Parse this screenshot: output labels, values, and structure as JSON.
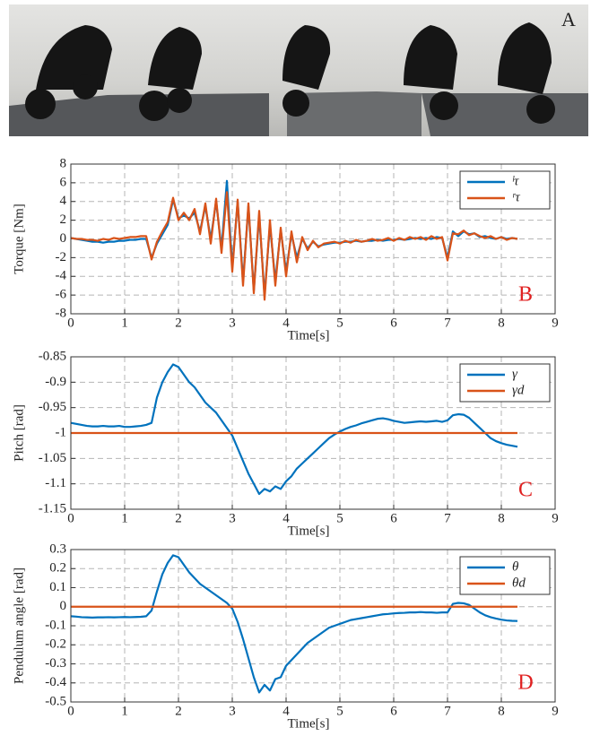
{
  "photo": {
    "label": "A"
  },
  "chart_data": [
    {
      "type": "line",
      "panel_label": "B",
      "ylabel": "Torque [Nm]",
      "xlabel": "Time[s]",
      "xlim": [
        0,
        9
      ],
      "xticks": [
        0,
        1,
        2,
        3,
        4,
        5,
        6,
        7,
        8,
        9
      ],
      "ylim": [
        -8,
        8
      ],
      "yticks": [
        -8,
        -6,
        -4,
        -2,
        0,
        2,
        4,
        6,
        8
      ],
      "grid": true,
      "legend": "upper right",
      "x": [
        0,
        0.1,
        0.2,
        0.3,
        0.4,
        0.5,
        0.6,
        0.7,
        0.8,
        0.9,
        1,
        1.1,
        1.2,
        1.3,
        1.4,
        1.5,
        1.6,
        1.7,
        1.8,
        1.9,
        2,
        2.1,
        2.2,
        2.3,
        2.4,
        2.5,
        2.6,
        2.7,
        2.8,
        2.9,
        3,
        3.1,
        3.2,
        3.3,
        3.4,
        3.5,
        3.6,
        3.7,
        3.8,
        3.9,
        4,
        4.1,
        4.2,
        4.3,
        4.4,
        4.5,
        4.6,
        4.7,
        4.8,
        4.9,
        5,
        5.1,
        5.2,
        5.3,
        5.4,
        5.5,
        5.6,
        5.7,
        5.8,
        5.9,
        6,
        6.1,
        6.2,
        6.3,
        6.4,
        6.5,
        6.6,
        6.7,
        6.8,
        6.9,
        7,
        7.1,
        7.2,
        7.3,
        7.4,
        7.5,
        7.6,
        7.7,
        7.8,
        7.9,
        8,
        8.1,
        8.2,
        8.3
      ],
      "series": [
        {
          "name": "ˡτ",
          "color": "#0072bd",
          "values": [
            0.1,
            0,
            -0.1,
            -0.2,
            -0.3,
            -0.3,
            -0.4,
            -0.3,
            -0.3,
            -0.2,
            -0.2,
            -0.1,
            -0.1,
            0,
            0,
            -2,
            -0.5,
            0.5,
            1.5,
            4.2,
            2.2,
            2.5,
            2.2,
            2.8,
            0.8,
            3.5,
            0,
            4,
            -1,
            6.2,
            -3,
            4,
            -4.5,
            3.5,
            -5.5,
            2.5,
            -6,
            1.5,
            -4.5,
            1,
            -3.5,
            0.5,
            -2,
            0,
            -1,
            -0.3,
            -0.8,
            -0.6,
            -0.5,
            -0.4,
            -0.4,
            -0.3,
            -0.3,
            -0.2,
            -0.3,
            -0.2,
            -0.2,
            -0.1,
            -0.2,
            -0.1,
            -0.1,
            0,
            -0.1,
            0,
            0.1,
            0,
            0.1,
            0,
            0.2,
            0.1,
            -2,
            0.8,
            0.3,
            0.8,
            0.5,
            0.6,
            0.2,
            0.3,
            0.1,
            0,
            0.2,
            0,
            0.1,
            0
          ]
        },
        {
          "name": "ʳτ",
          "color": "#d95319",
          "values": [
            0.1,
            0,
            0,
            -0.1,
            -0.1,
            -0.2,
            0,
            -0.1,
            0.1,
            0,
            0.1,
            0.2,
            0.2,
            0.3,
            0.3,
            -2.2,
            -0.3,
            0.8,
            1.8,
            4.4,
            2,
            2.8,
            2,
            3.2,
            0.5,
            3.8,
            -0.5,
            4.3,
            -1.5,
            5,
            -3.5,
            4.2,
            -5,
            3.8,
            -5.8,
            3,
            -6.5,
            2,
            -5,
            1.2,
            -4,
            0.8,
            -2.5,
            0.2,
            -1.2,
            -0.2,
            -0.9,
            -0.5,
            -0.4,
            -0.3,
            -0.5,
            -0.2,
            -0.4,
            -0.1,
            -0.3,
            -0.2,
            0,
            -0.2,
            -0.1,
            0.1,
            -0.2,
            0.1,
            -0.1,
            0.2,
            0,
            0.2,
            -0.1,
            0.3,
            0,
            0.2,
            -2.3,
            0.6,
            0.5,
            0.9,
            0.4,
            0.6,
            0.3,
            0.1,
            0.3,
            0,
            0.2,
            -0.1,
            0.1,
            0
          ]
        }
      ]
    },
    {
      "type": "line",
      "panel_label": "C",
      "ylabel": "Pitch [rad]",
      "xlabel": "Time[s]",
      "xlim": [
        0,
        9
      ],
      "xticks": [
        0,
        1,
        2,
        3,
        4,
        5,
        6,
        7,
        8,
        9
      ],
      "ylim": [
        -1.15,
        -0.85
      ],
      "yticks": [
        -1.15,
        -1.1,
        -1.05,
        -1,
        -0.95,
        -0.9,
        -0.85
      ],
      "grid": true,
      "legend": "upper right",
      "x": [
        0,
        0.1,
        0.2,
        0.3,
        0.4,
        0.5,
        0.6,
        0.7,
        0.8,
        0.9,
        1,
        1.1,
        1.2,
        1.3,
        1.4,
        1.5,
        1.6,
        1.7,
        1.8,
        1.9,
        2,
        2.1,
        2.2,
        2.3,
        2.4,
        2.5,
        2.6,
        2.7,
        2.8,
        2.9,
        3,
        3.1,
        3.2,
        3.3,
        3.4,
        3.5,
        3.6,
        3.7,
        3.8,
        3.9,
        4,
        4.1,
        4.2,
        4.3,
        4.4,
        4.5,
        4.6,
        4.7,
        4.8,
        4.9,
        5,
        5.1,
        5.2,
        5.3,
        5.4,
        5.5,
        5.6,
        5.7,
        5.8,
        5.9,
        6,
        6.1,
        6.2,
        6.3,
        6.4,
        6.5,
        6.6,
        6.7,
        6.8,
        6.9,
        7,
        7.1,
        7.2,
        7.3,
        7.4,
        7.5,
        7.6,
        7.7,
        7.8,
        7.9,
        8,
        8.1,
        8.2,
        8.3
      ],
      "series": [
        {
          "name": "γ",
          "color": "#0072bd",
          "values": [
            -0.98,
            -0.982,
            -0.984,
            -0.986,
            -0.987,
            -0.987,
            -0.986,
            -0.987,
            -0.987,
            -0.986,
            -0.988,
            -0.988,
            -0.987,
            -0.986,
            -0.984,
            -0.98,
            -0.93,
            -0.9,
            -0.88,
            -0.865,
            -0.87,
            -0.885,
            -0.9,
            -0.91,
            -0.925,
            -0.94,
            -0.95,
            -0.96,
            -0.975,
            -0.99,
            -1.005,
            -1.03,
            -1.055,
            -1.08,
            -1.1,
            -1.12,
            -1.11,
            -1.115,
            -1.105,
            -1.11,
            -1.095,
            -1.085,
            -1.07,
            -1.06,
            -1.05,
            -1.04,
            -1.03,
            -1.02,
            -1.01,
            -1.003,
            -0.997,
            -0.992,
            -0.988,
            -0.985,
            -0.981,
            -0.978,
            -0.975,
            -0.972,
            -0.971,
            -0.973,
            -0.976,
            -0.978,
            -0.98,
            -0.979,
            -0.978,
            -0.977,
            -0.978,
            -0.977,
            -0.976,
            -0.978,
            -0.975,
            -0.965,
            -0.963,
            -0.964,
            -0.97,
            -0.98,
            -0.99,
            -1,
            -1.01,
            -1.016,
            -1.02,
            -1.023,
            -1.025,
            -1.027
          ]
        },
        {
          "name": "γd",
          "color": "#d95319",
          "x": [
            0,
            8.3
          ],
          "values": [
            -1,
            -1
          ]
        }
      ]
    },
    {
      "type": "line",
      "panel_label": "D",
      "ylabel": "Pendulum angle [rad]",
      "xlabel": "Time[s]",
      "xlim": [
        0,
        9
      ],
      "xticks": [
        0,
        1,
        2,
        3,
        4,
        5,
        6,
        7,
        8,
        9
      ],
      "ylim": [
        -0.5,
        0.3
      ],
      "yticks": [
        -0.5,
        -0.4,
        -0.3,
        -0.2,
        -0.1,
        0,
        0.1,
        0.2,
        0.3
      ],
      "grid": true,
      "legend": "upper right",
      "x": [
        0,
        0.1,
        0.2,
        0.3,
        0.4,
        0.5,
        0.6,
        0.7,
        0.8,
        0.9,
        1,
        1.1,
        1.2,
        1.3,
        1.4,
        1.5,
        1.6,
        1.7,
        1.8,
        1.9,
        2,
        2.1,
        2.2,
        2.3,
        2.4,
        2.5,
        2.6,
        2.7,
        2.8,
        2.9,
        3,
        3.1,
        3.2,
        3.3,
        3.4,
        3.5,
        3.6,
        3.7,
        3.8,
        3.9,
        4,
        4.1,
        4.2,
        4.3,
        4.4,
        4.5,
        4.6,
        4.7,
        4.8,
        4.9,
        5,
        5.1,
        5.2,
        5.3,
        5.4,
        5.5,
        5.6,
        5.7,
        5.8,
        5.9,
        6,
        6.1,
        6.2,
        6.3,
        6.4,
        6.5,
        6.6,
        6.7,
        6.8,
        6.9,
        7,
        7.1,
        7.2,
        7.3,
        7.4,
        7.5,
        7.6,
        7.7,
        7.8,
        7.9,
        8,
        8.1,
        8.2,
        8.3
      ],
      "series": [
        {
          "name": "θ",
          "color": "#0072bd",
          "values": [
            -0.05,
            -0.052,
            -0.055,
            -0.056,
            -0.057,
            -0.056,
            -0.056,
            -0.055,
            -0.056,
            -0.055,
            -0.054,
            -0.055,
            -0.054,
            -0.053,
            -0.05,
            -0.02,
            0.08,
            0.17,
            0.23,
            0.27,
            0.26,
            0.22,
            0.18,
            0.15,
            0.12,
            0.1,
            0.08,
            0.06,
            0.04,
            0.02,
            -0.01,
            -0.08,
            -0.17,
            -0.27,
            -0.37,
            -0.45,
            -0.41,
            -0.44,
            -0.38,
            -0.37,
            -0.31,
            -0.28,
            -0.25,
            -0.22,
            -0.19,
            -0.17,
            -0.15,
            -0.13,
            -0.11,
            -0.1,
            -0.09,
            -0.08,
            -0.07,
            -0.065,
            -0.06,
            -0.055,
            -0.05,
            -0.045,
            -0.04,
            -0.038,
            -0.035,
            -0.033,
            -0.032,
            -0.03,
            -0.03,
            -0.028,
            -0.03,
            -0.03,
            -0.032,
            -0.03,
            -0.03,
            0.015,
            0.02,
            0.018,
            0.01,
            -0.01,
            -0.03,
            -0.045,
            -0.055,
            -0.062,
            -0.068,
            -0.072,
            -0.074,
            -0.075
          ]
        },
        {
          "name": "θd",
          "color": "#d95319",
          "x": [
            0,
            8.3
          ],
          "values": [
            0,
            0
          ]
        }
      ]
    }
  ]
}
